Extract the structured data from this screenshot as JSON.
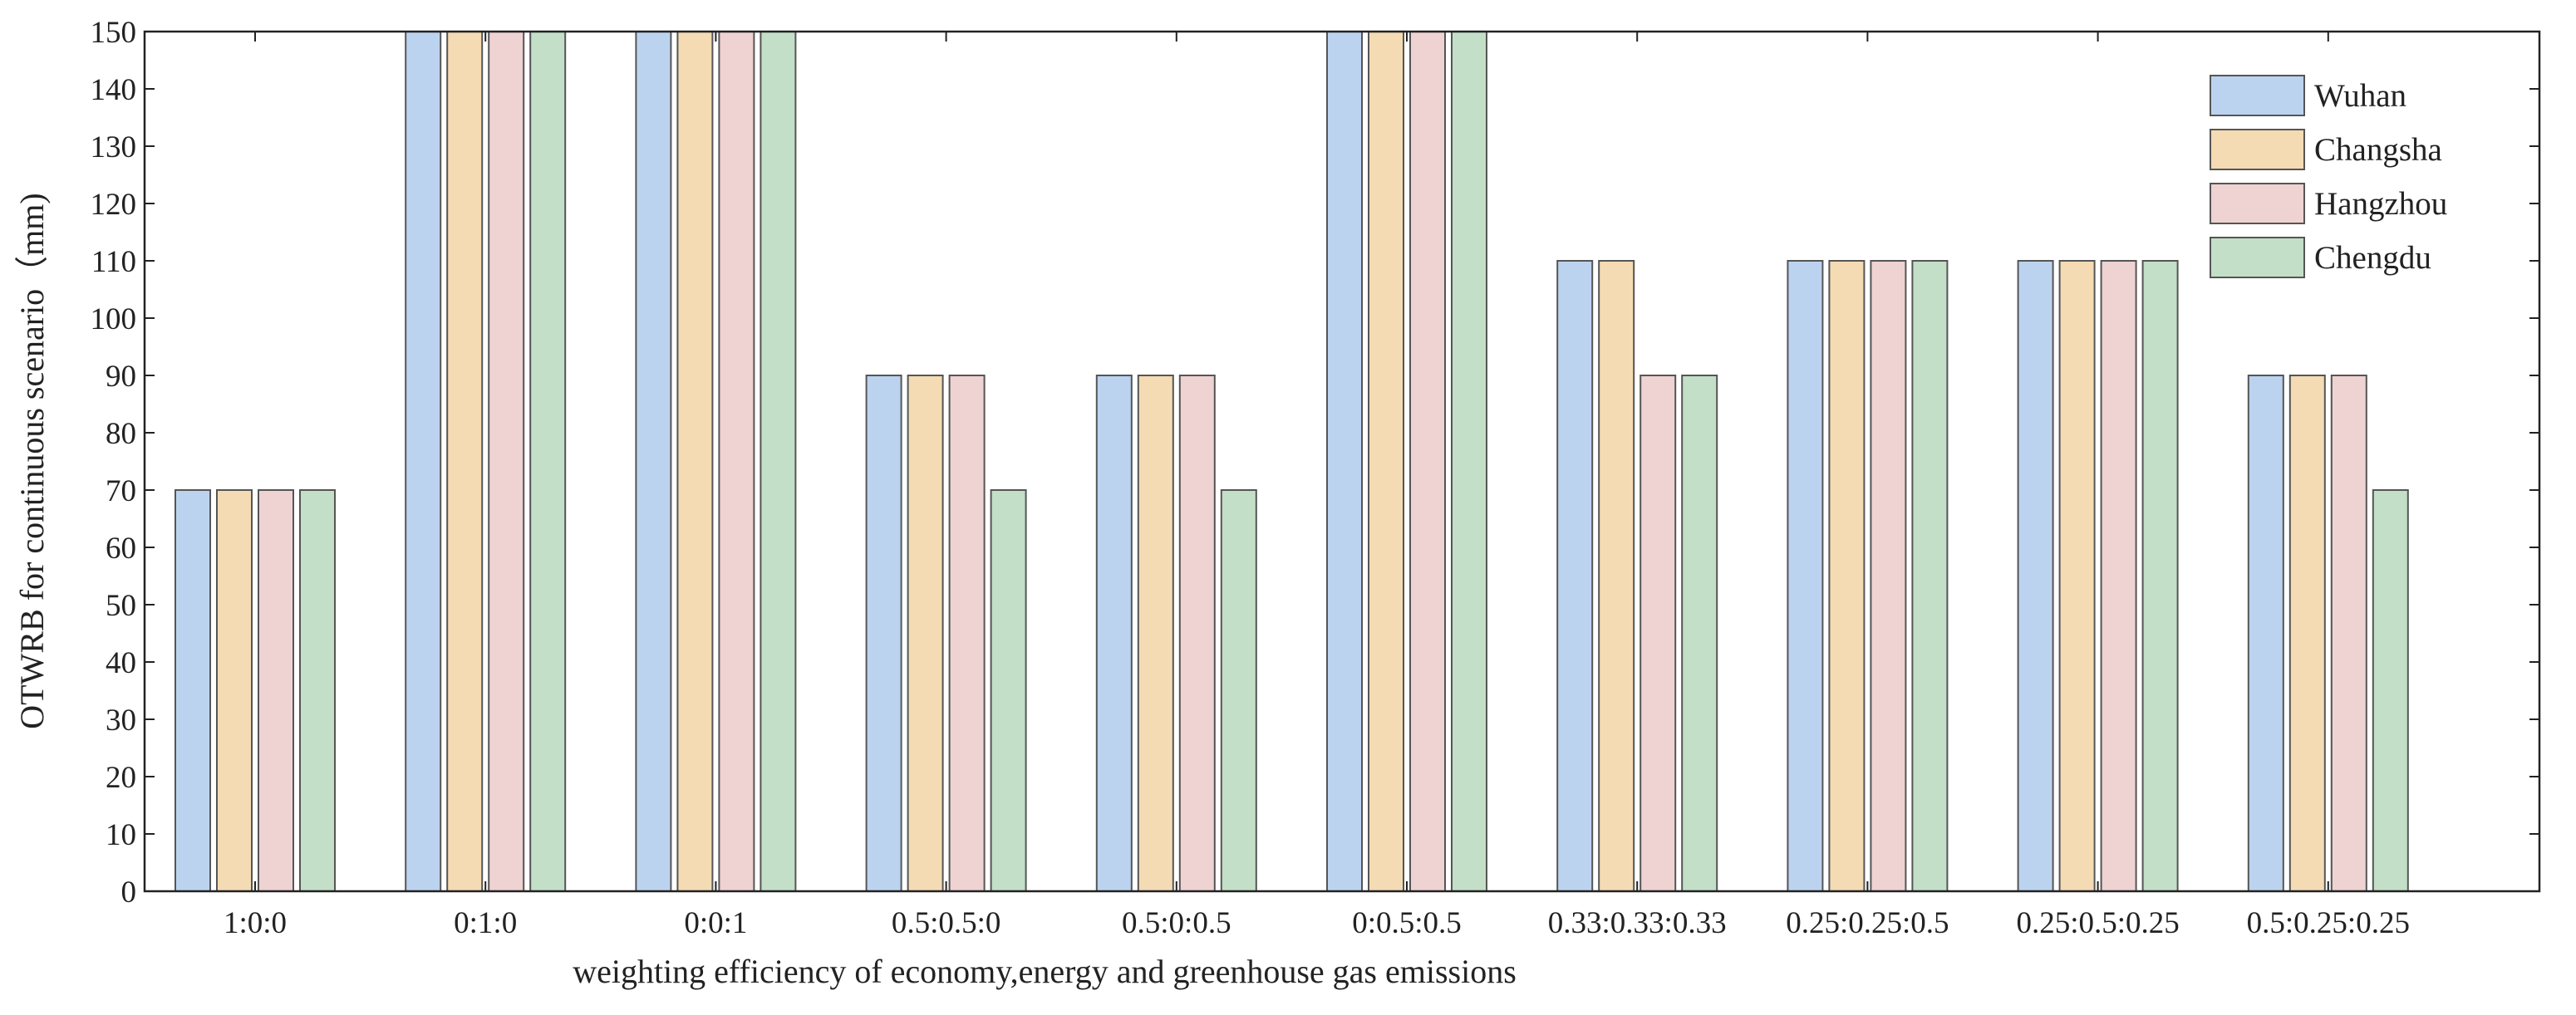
{
  "chart_data": {
    "type": "bar",
    "title": "",
    "xlabel": "weighting efficiency of economy,energy and greenhouse gas emissions",
    "ylabel": "OTWRB for continuous scenario（mm)",
    "ylim": [
      0,
      150
    ],
    "yticks": [
      0,
      10,
      20,
      30,
      40,
      50,
      60,
      70,
      80,
      90,
      100,
      110,
      120,
      130,
      140,
      150
    ],
    "categories": [
      "1:0:0",
      "0:1:0",
      "0:0:1",
      "0.5:0.5:0",
      "0.5:0:0.5",
      "0:0.5:0.5",
      "0.33:0.33:0.33",
      "0.25:0.25:0.5",
      "0.25:0.5:0.25",
      "0.5:0.25:0.25"
    ],
    "series": [
      {
        "name": "Wuhan",
        "color": "#bcd3f0",
        "values": [
          70,
          150,
          150,
          90,
          90,
          150,
          110,
          110,
          110,
          90
        ]
      },
      {
        "name": "Changsha",
        "color": "#f4dbb3",
        "values": [
          70,
          150,
          150,
          90,
          90,
          150,
          110,
          110,
          110,
          90
        ]
      },
      {
        "name": "Hangzhou",
        "color": "#efd2d2",
        "values": [
          70,
          150,
          150,
          90,
          90,
          150,
          90,
          110,
          110,
          90
        ]
      },
      {
        "name": "Chengdu",
        "color": "#c3dfc7",
        "values": [
          70,
          150,
          150,
          70,
          70,
          150,
          90,
          110,
          110,
          70
        ]
      }
    ],
    "legend": "top-right",
    "grid": false
  }
}
